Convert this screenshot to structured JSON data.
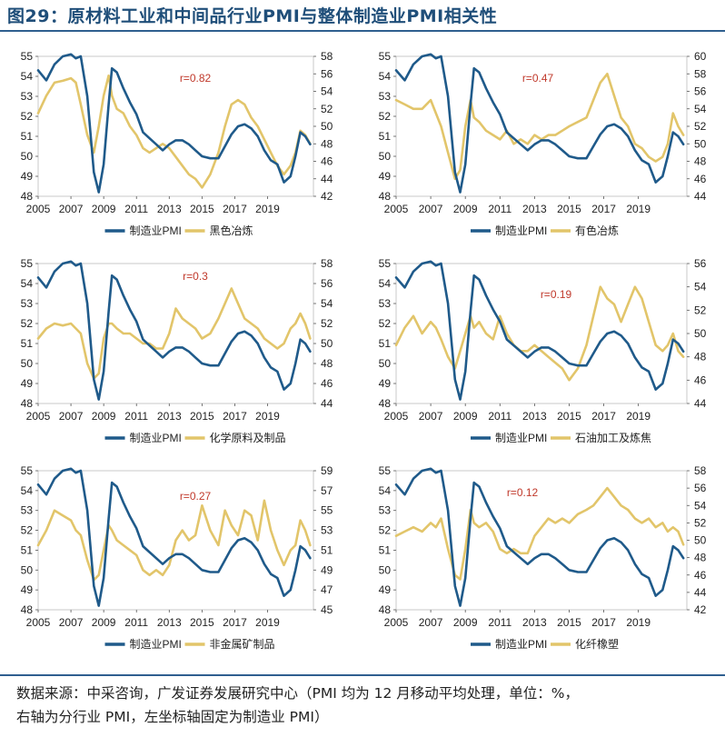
{
  "title": "图29：原材料工业和中间品行业PMI与整体制造业PMI相关性",
  "source_line1": "数据来源：中采咨询，广发证券发展研究中心（PMI 均为 12 月移动平均处理，单位：%，",
  "source_line2": "右轴为分行业 PMI，左坐标轴固定为制造业 PMI）",
  "colors": {
    "pmi": "#1f5a8a",
    "industry": "#e2c56a",
    "r": "#c0392b",
    "axis": "#555555"
  },
  "x_tick_labels": [
    "2005",
    "2007",
    "2009",
    "2011",
    "2013",
    "2015",
    "2017",
    "2019"
  ],
  "x_ticks": [
    2005,
    2007,
    2009,
    2011,
    2013,
    2015,
    2017,
    2019
  ],
  "left_axis": {
    "min": 48,
    "max": 55,
    "ticks": [
      "48",
      "49",
      "50",
      "51",
      "52",
      "53",
      "54",
      "55"
    ]
  },
  "chart_data": [
    {
      "type": "line",
      "legend": [
        "制造业PMI",
        "黑色冶炼"
      ],
      "r_label": "r=0.82",
      "right_ylim": [
        42,
        58
      ],
      "right_ticks": [
        "42",
        "44",
        "46",
        "48",
        "50",
        "52",
        "54",
        "56",
        "58"
      ],
      "x": [
        2005,
        2005.5,
        2006,
        2006.5,
        2007,
        2007.3,
        2007.6,
        2008,
        2008.4,
        2008.7,
        2009,
        2009.3,
        2009.5,
        2009.8,
        2010.2,
        2010.6,
        2011,
        2011.4,
        2011.8,
        2012.2,
        2012.6,
        2013,
        2013.4,
        2013.8,
        2014.2,
        2014.6,
        2015,
        2015.5,
        2016,
        2016.4,
        2016.8,
        2017.2,
        2017.6,
        2018,
        2018.4,
        2018.8,
        2019.2,
        2019.6,
        2020,
        2020.4,
        2020.7,
        2021,
        2021.3,
        2021.6
      ],
      "series": [
        {
          "name": "制造业PMI",
          "axis": "left",
          "values": [
            54.3,
            53.8,
            54.6,
            55.0,
            55.1,
            54.9,
            55.0,
            53.0,
            49.2,
            48.2,
            49.6,
            52.6,
            54.4,
            54.2,
            53.4,
            52.7,
            52.1,
            51.2,
            50.9,
            50.6,
            50.3,
            50.6,
            50.8,
            50.8,
            50.6,
            50.3,
            50.0,
            49.9,
            49.9,
            50.5,
            51.1,
            51.5,
            51.6,
            51.4,
            51.0,
            50.3,
            49.8,
            49.6,
            48.7,
            49.0,
            50.0,
            51.2,
            51.0,
            50.6
          ]
        },
        {
          "name": "黑色冶炼",
          "axis": "right",
          "values": [
            51.5,
            53.5,
            55.0,
            55.2,
            55.5,
            55.0,
            52.5,
            49.0,
            47.0,
            50.0,
            53.5,
            55.8,
            53.5,
            52.0,
            51.5,
            50.0,
            49.0,
            47.5,
            47.0,
            47.5,
            48.0,
            47.5,
            46.5,
            45.5,
            44.5,
            44.0,
            43.0,
            44.5,
            47.0,
            50.0,
            52.5,
            53.0,
            52.5,
            51.0,
            50.0,
            48.5,
            47.0,
            45.5,
            44.5,
            45.5,
            47.0,
            49.5,
            49.0,
            48.0
          ]
        }
      ]
    },
    {
      "type": "line",
      "legend": [
        "制造业PMI",
        "有色冶炼"
      ],
      "r_label": "r=0.47",
      "right_ylim": [
        44,
        60
      ],
      "right_ticks": [
        "44",
        "46",
        "48",
        "50",
        "52",
        "54",
        "56",
        "58",
        "60"
      ],
      "x": [
        2005,
        2005.5,
        2006,
        2006.5,
        2007,
        2007.3,
        2007.6,
        2008,
        2008.4,
        2008.7,
        2009,
        2009.3,
        2009.5,
        2009.8,
        2010.2,
        2010.6,
        2011,
        2011.4,
        2011.8,
        2012.2,
        2012.6,
        2013,
        2013.4,
        2013.8,
        2014.2,
        2014.6,
        2015,
        2015.5,
        2016,
        2016.4,
        2016.8,
        2017.2,
        2017.6,
        2018,
        2018.4,
        2018.8,
        2019.2,
        2019.6,
        2020,
        2020.4,
        2020.7,
        2021,
        2021.3,
        2021.6
      ],
      "series": [
        {
          "name": "制造业PMI",
          "axis": "left",
          "values": [
            54.3,
            53.8,
            54.6,
            55.0,
            55.1,
            54.9,
            55.0,
            53.0,
            49.2,
            48.2,
            49.6,
            52.6,
            54.4,
            54.2,
            53.4,
            52.7,
            52.1,
            51.2,
            50.9,
            50.6,
            50.3,
            50.6,
            50.8,
            50.8,
            50.6,
            50.3,
            50.0,
            49.9,
            49.9,
            50.5,
            51.1,
            51.5,
            51.6,
            51.4,
            51.0,
            50.3,
            49.8,
            49.6,
            48.7,
            49.0,
            50.0,
            51.2,
            51.0,
            50.6
          ]
        },
        {
          "name": "有色冶炼",
          "axis": "right",
          "values": [
            55.0,
            54.5,
            54.0,
            54.0,
            55.0,
            53.5,
            52.0,
            49.0,
            46.0,
            47.0,
            52.0,
            55.0,
            53.0,
            52.5,
            51.5,
            51.0,
            50.5,
            51.5,
            50.0,
            50.5,
            50.0,
            51.0,
            50.5,
            51.0,
            51.0,
            51.5,
            52.0,
            52.5,
            53.0,
            55.0,
            57.0,
            58.0,
            55.5,
            53.0,
            52.0,
            50.0,
            49.5,
            48.5,
            48.0,
            48.5,
            50.0,
            53.5,
            52.0,
            51.0
          ]
        }
      ]
    },
    {
      "type": "line",
      "legend": [
        "制造业PMI",
        "化学原料及制品"
      ],
      "r_label": "r=0.3",
      "right_ylim": [
        44,
        58
      ],
      "right_ticks": [
        "44",
        "46",
        "48",
        "50",
        "52",
        "54",
        "56",
        "58"
      ],
      "x": [
        2005,
        2005.5,
        2006,
        2006.5,
        2007,
        2007.3,
        2007.6,
        2008,
        2008.4,
        2008.7,
        2009,
        2009.3,
        2009.5,
        2009.8,
        2010.2,
        2010.6,
        2011,
        2011.4,
        2011.8,
        2012.2,
        2012.6,
        2013,
        2013.4,
        2013.8,
        2014.2,
        2014.6,
        2015,
        2015.5,
        2016,
        2016.4,
        2016.8,
        2017.2,
        2017.6,
        2018,
        2018.4,
        2018.8,
        2019.2,
        2019.6,
        2020,
        2020.4,
        2020.7,
        2021,
        2021.3,
        2021.6
      ],
      "series": [
        {
          "name": "制造业PMI",
          "axis": "left",
          "values": [
            54.3,
            53.8,
            54.6,
            55.0,
            55.1,
            54.9,
            55.0,
            53.0,
            49.2,
            48.2,
            49.6,
            52.6,
            54.4,
            54.2,
            53.4,
            52.7,
            52.1,
            51.2,
            50.9,
            50.6,
            50.3,
            50.6,
            50.8,
            50.8,
            50.6,
            50.3,
            50.0,
            49.9,
            49.9,
            50.5,
            51.1,
            51.5,
            51.6,
            51.4,
            51.0,
            50.3,
            49.8,
            49.6,
            48.7,
            49.0,
            50.0,
            51.2,
            51.0,
            50.6
          ]
        },
        {
          "name": "化学原料及制品",
          "axis": "right",
          "values": [
            50.5,
            51.5,
            52.0,
            51.8,
            52.0,
            51.5,
            51.0,
            48.0,
            46.5,
            47.0,
            50.5,
            52.0,
            52.0,
            51.5,
            51.0,
            51.0,
            50.5,
            50.0,
            50.0,
            49.5,
            49.5,
            51.0,
            53.5,
            52.5,
            52.0,
            51.5,
            50.5,
            51.0,
            52.5,
            54.0,
            55.5,
            54.0,
            52.5,
            52.0,
            51.5,
            50.5,
            50.0,
            49.5,
            50.0,
            51.5,
            52.0,
            53.0,
            52.0,
            50.5
          ]
        }
      ]
    },
    {
      "type": "line",
      "legend": [
        "制造业PMI",
        "石油加工及炼焦"
      ],
      "r_label": "r=0.19",
      "right_ylim": [
        44,
        56
      ],
      "right_ticks": [
        "44",
        "46",
        "48",
        "50",
        "52",
        "54",
        "56"
      ],
      "x": [
        2005,
        2005.5,
        2006,
        2006.5,
        2007,
        2007.3,
        2007.6,
        2008,
        2008.4,
        2008.7,
        2009,
        2009.3,
        2009.5,
        2009.8,
        2010.2,
        2010.6,
        2011,
        2011.4,
        2011.8,
        2012.2,
        2012.6,
        2013,
        2013.4,
        2013.8,
        2014.2,
        2014.6,
        2015,
        2015.5,
        2016,
        2016.4,
        2016.8,
        2017.2,
        2017.6,
        2018,
        2018.4,
        2018.8,
        2019.2,
        2019.6,
        2020,
        2020.4,
        2020.7,
        2021,
        2021.3,
        2021.6
      ],
      "series": [
        {
          "name": "制造业PMI",
          "axis": "left",
          "values": [
            54.3,
            53.8,
            54.6,
            55.0,
            55.1,
            54.9,
            55.0,
            53.0,
            49.2,
            48.2,
            49.6,
            52.6,
            54.4,
            54.2,
            53.4,
            52.7,
            52.1,
            51.2,
            50.9,
            50.6,
            50.3,
            50.6,
            50.8,
            50.8,
            50.6,
            50.3,
            50.0,
            49.9,
            49.9,
            50.5,
            51.1,
            51.5,
            51.6,
            51.4,
            51.0,
            50.3,
            49.8,
            49.6,
            48.7,
            49.0,
            50.0,
            51.2,
            51.0,
            50.6
          ]
        },
        {
          "name": "石油加工及炼焦",
          "axis": "right",
          "values": [
            49.0,
            50.5,
            51.5,
            50.0,
            51.0,
            50.5,
            49.5,
            48.0,
            47.0,
            48.5,
            50.0,
            51.5,
            50.5,
            51.0,
            50.0,
            49.5,
            51.5,
            50.0,
            49.0,
            48.5,
            48.5,
            49.0,
            48.5,
            48.0,
            47.5,
            47.0,
            46.0,
            47.0,
            49.0,
            51.5,
            54.0,
            53.0,
            52.5,
            51.0,
            52.5,
            54.0,
            53.0,
            51.0,
            49.0,
            48.5,
            49.0,
            50.0,
            48.5,
            48.0
          ]
        }
      ]
    },
    {
      "type": "line",
      "legend": [
        "制造业PMI",
        "非金属矿制品"
      ],
      "r_label": "r=0.27",
      "right_ylim": [
        45,
        59
      ],
      "right_ticks": [
        "45",
        "47",
        "49",
        "51",
        "53",
        "55",
        "57",
        "59"
      ],
      "x": [
        2005,
        2005.5,
        2006,
        2006.5,
        2007,
        2007.3,
        2007.6,
        2008,
        2008.4,
        2008.7,
        2009,
        2009.3,
        2009.5,
        2009.8,
        2010.2,
        2010.6,
        2011,
        2011.4,
        2011.8,
        2012.2,
        2012.6,
        2013,
        2013.4,
        2013.8,
        2014.2,
        2014.6,
        2015,
        2015.5,
        2016,
        2016.4,
        2016.8,
        2017.2,
        2017.6,
        2018,
        2018.4,
        2018.8,
        2019.2,
        2019.6,
        2020,
        2020.4,
        2020.7,
        2021,
        2021.3,
        2021.6
      ],
      "series": [
        {
          "name": "制造业PMI",
          "axis": "left",
          "values": [
            54.3,
            53.8,
            54.6,
            55.0,
            55.1,
            54.9,
            55.0,
            53.0,
            49.2,
            48.2,
            49.6,
            52.6,
            54.4,
            54.2,
            53.4,
            52.7,
            52.1,
            51.2,
            50.9,
            50.6,
            50.3,
            50.6,
            50.8,
            50.8,
            50.6,
            50.3,
            50.0,
            49.9,
            49.9,
            50.5,
            51.1,
            51.5,
            51.6,
            51.4,
            51.0,
            50.3,
            49.8,
            49.6,
            48.7,
            49.0,
            50.0,
            51.2,
            51.0,
            50.6
          ]
        },
        {
          "name": "非金属矿制品",
          "axis": "right",
          "values": [
            51.5,
            53.0,
            55.0,
            54.5,
            54.0,
            53.0,
            52.5,
            50.0,
            48.0,
            48.5,
            51.0,
            53.5,
            53.0,
            52.0,
            51.5,
            51.0,
            50.5,
            49.0,
            48.5,
            49.0,
            48.5,
            49.5,
            52.0,
            53.0,
            52.0,
            52.5,
            55.5,
            53.0,
            51.5,
            55.0,
            53.5,
            52.5,
            55.0,
            54.5,
            52.0,
            56.0,
            53.0,
            51.0,
            49.5,
            51.0,
            51.5,
            54.0,
            53.0,
            51.5
          ]
        }
      ]
    },
    {
      "type": "line",
      "legend": [
        "制造业PMI",
        "化纤橡塑"
      ],
      "r_label": "r=0.12",
      "right_ylim": [
        42,
        58
      ],
      "right_ticks": [
        "42",
        "44",
        "46",
        "48",
        "50",
        "52",
        "54",
        "56",
        "58"
      ],
      "x": [
        2005,
        2005.5,
        2006,
        2006.5,
        2007,
        2007.3,
        2007.6,
        2008,
        2008.4,
        2008.7,
        2009,
        2009.3,
        2009.5,
        2009.8,
        2010.2,
        2010.6,
        2011,
        2011.4,
        2011.8,
        2012.2,
        2012.6,
        2013,
        2013.4,
        2013.8,
        2014.2,
        2014.6,
        2015,
        2015.5,
        2016,
        2016.4,
        2016.8,
        2017.2,
        2017.6,
        2018,
        2018.4,
        2018.8,
        2019.2,
        2019.6,
        2020,
        2020.4,
        2020.7,
        2021,
        2021.3,
        2021.6
      ],
      "series": [
        {
          "name": "制造业PMI",
          "axis": "left",
          "values": [
            54.3,
            53.8,
            54.6,
            55.0,
            55.1,
            54.9,
            55.0,
            53.0,
            49.2,
            48.2,
            49.6,
            52.6,
            54.4,
            54.2,
            53.4,
            52.7,
            52.1,
            51.2,
            50.9,
            50.6,
            50.3,
            50.6,
            50.8,
            50.8,
            50.6,
            50.3,
            50.0,
            49.9,
            49.9,
            50.5,
            51.1,
            51.5,
            51.6,
            51.4,
            51.0,
            50.3,
            49.8,
            49.6,
            48.7,
            49.0,
            50.0,
            51.2,
            51.0,
            50.6
          ]
        },
        {
          "name": "化纤橡塑",
          "axis": "right",
          "values": [
            50.5,
            51.0,
            51.5,
            51.0,
            52.0,
            51.5,
            52.5,
            49.0,
            46.0,
            45.5,
            49.0,
            53.5,
            52.0,
            51.5,
            52.0,
            51.0,
            49.0,
            48.5,
            49.0,
            48.5,
            48.5,
            50.5,
            51.5,
            52.5,
            52.0,
            52.5,
            52.0,
            53.0,
            53.5,
            54.0,
            55.0,
            56.0,
            55.0,
            54.0,
            53.5,
            52.5,
            52.0,
            52.5,
            51.5,
            52.0,
            51.0,
            51.5,
            51.0,
            49.5
          ]
        }
      ]
    }
  ]
}
